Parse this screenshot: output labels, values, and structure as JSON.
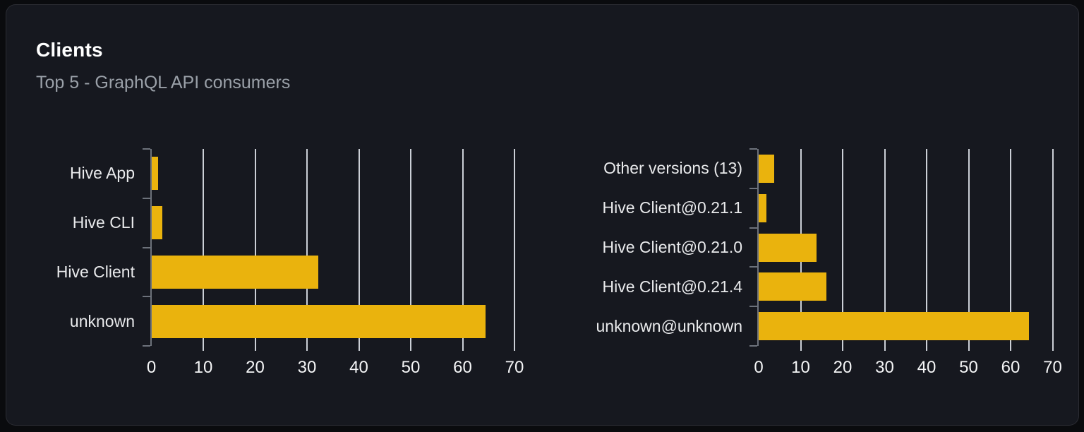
{
  "card": {
    "title": "Clients",
    "subtitle": "Top 5 - GraphQL API consumers"
  },
  "colors": {
    "page_bg": "#0a0b0e",
    "card_bg": "#16181f",
    "card_border": "rgba(255,255,255,0.09)",
    "title": "#ffffff",
    "subtitle": "#9aa0a8",
    "bar": "#eab30d",
    "gridline": "#dbdfe6",
    "axis": "#6d727b",
    "category_label": "#e9eaec",
    "tick_label": "#f4f5f6"
  },
  "chart_data": [
    {
      "type": "bar",
      "orientation": "horizontal",
      "name": "clients-by-name",
      "categories": [
        "Hive App",
        "Hive CLI",
        "Hive Client",
        "unknown"
      ],
      "values": [
        1.3,
        2.1,
        32.2,
        64.4
      ],
      "xticks": [
        0,
        10,
        20,
        30,
        40,
        50,
        60,
        70
      ],
      "xlim": [
        0,
        71
      ],
      "grid": true,
      "legend": "none",
      "title": "",
      "xlabel": "",
      "ylabel": ""
    },
    {
      "type": "bar",
      "orientation": "horizontal",
      "name": "clients-by-version",
      "categories": [
        "Other versions (13)",
        "Hive Client@0.21.1",
        "Hive Client@0.21.0",
        "Hive Client@0.21.4",
        "unknown@unknown"
      ],
      "values": [
        3.7,
        1.9,
        13.8,
        16.2,
        64.4
      ],
      "xticks": [
        0,
        10,
        20,
        30,
        40,
        50,
        60,
        70
      ],
      "xlim": [
        0,
        71
      ],
      "grid": true,
      "legend": "none",
      "title": "",
      "xlabel": "",
      "ylabel": ""
    }
  ]
}
